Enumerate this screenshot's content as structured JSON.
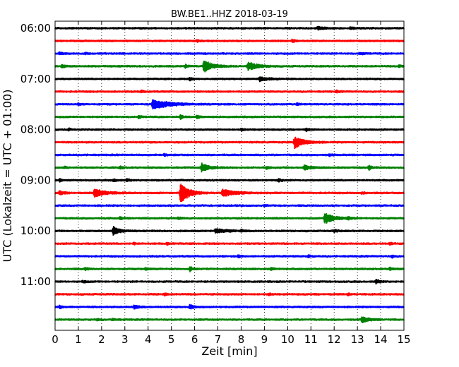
{
  "chart_data": {
    "type": "line",
    "title": "BW.BE1..HHZ 2018-03-19",
    "xlabel": "Zeit  [min]",
    "ylabel": "UTC (Lokalzeit = UTC + 01:00)",
    "xlim": [
      0,
      15
    ],
    "xticks": [
      0,
      1,
      2,
      3,
      4,
      5,
      6,
      7,
      8,
      9,
      10,
      11,
      12,
      13,
      14,
      15
    ],
    "xtick_labels": [
      "0",
      "1",
      "2",
      "3",
      "4",
      "5",
      "6",
      "7",
      "8",
      "9",
      "10",
      "11",
      "12",
      "13",
      "14",
      "15"
    ],
    "grid": "vertical dotted lines at each minute",
    "row_interval_minutes": 15,
    "rows": [
      {
        "time": "06:00",
        "label": "06:00",
        "color": "#000000",
        "events": [
          {
            "t": 11.3,
            "amp": 0.3,
            "dur": 0.5
          },
          {
            "t": 12.7,
            "amp": 0.2,
            "dur": 0.3
          }
        ]
      },
      {
        "time": "06:15",
        "label": "",
        "color": "#ff0000",
        "events": [
          {
            "t": 6.1,
            "amp": 0.25,
            "dur": 0.15
          },
          {
            "t": 10.2,
            "amp": 0.35,
            "dur": 0.2
          }
        ]
      },
      {
        "time": "06:30",
        "label": "",
        "color": "#0000ff",
        "events": [
          {
            "t": 0.2,
            "amp": 0.3,
            "dur": 0.2
          },
          {
            "t": 1.3,
            "amp": 0.2,
            "dur": 0.2
          },
          {
            "t": 13.1,
            "amp": 0.25,
            "dur": 0.3
          }
        ]
      },
      {
        "time": "06:45",
        "label": "",
        "color": "#008000",
        "events": [
          {
            "t": 0.3,
            "amp": 0.3,
            "dur": 0.3
          },
          {
            "t": 5.6,
            "amp": 0.35,
            "dur": 0.2
          },
          {
            "t": 6.4,
            "amp": 1.3,
            "dur": 0.7
          },
          {
            "t": 8.3,
            "amp": 1.0,
            "dur": 0.7
          },
          {
            "t": 14.8,
            "amp": 0.3,
            "dur": 0.2
          }
        ]
      },
      {
        "time": "07:00",
        "label": "07:00",
        "color": "#000000",
        "events": [
          {
            "t": 5.8,
            "amp": 0.3,
            "dur": 0.2
          },
          {
            "t": 8.8,
            "amp": 0.45,
            "dur": 0.7
          }
        ]
      },
      {
        "time": "07:15",
        "label": "",
        "color": "#ff0000",
        "events": [
          {
            "t": 3.7,
            "amp": 0.3,
            "dur": 0.2
          },
          {
            "t": 12.1,
            "amp": 0.2,
            "dur": 0.2
          }
        ]
      },
      {
        "time": "07:30",
        "label": "",
        "color": "#0000ff",
        "events": [
          {
            "t": 1.0,
            "amp": 0.3,
            "dur": 0.15
          },
          {
            "t": 4.2,
            "amp": 1.2,
            "dur": 1.2
          },
          {
            "t": 10.4,
            "amp": 0.3,
            "dur": 0.2
          }
        ]
      },
      {
        "time": "07:45",
        "label": "",
        "color": "#008000",
        "events": [
          {
            "t": 3.6,
            "amp": 0.3,
            "dur": 0.2
          },
          {
            "t": 5.4,
            "amp": 0.45,
            "dur": 0.2
          },
          {
            "t": 6.1,
            "amp": 0.35,
            "dur": 0.2
          }
        ]
      },
      {
        "time": "08:00",
        "label": "08:00",
        "color": "#000000",
        "events": [
          {
            "t": 0.6,
            "amp": 0.25,
            "dur": 0.15
          },
          {
            "t": 10.8,
            "amp": 0.3,
            "dur": 0.2
          },
          {
            "t": 8.0,
            "amp": 0.25,
            "dur": 0.3
          }
        ]
      },
      {
        "time": "08:15",
        "label": "",
        "color": "#ff0000",
        "events": [
          {
            "t": 10.3,
            "amp": 1.4,
            "dur": 0.7
          }
        ]
      },
      {
        "time": "08:30",
        "label": "",
        "color": "#0000ff",
        "events": [
          {
            "t": 4.7,
            "amp": 0.3,
            "dur": 0.2
          },
          {
            "t": 11.8,
            "amp": 0.2,
            "dur": 0.2
          }
        ]
      },
      {
        "time": "08:45",
        "label": "",
        "color": "#008000",
        "events": [
          {
            "t": 0.4,
            "amp": 0.2,
            "dur": 0.2
          },
          {
            "t": 2.8,
            "amp": 0.3,
            "dur": 0.2
          },
          {
            "t": 6.3,
            "amp": 1.0,
            "dur": 0.6
          },
          {
            "t": 9.1,
            "amp": 0.3,
            "dur": 0.2
          },
          {
            "t": 10.7,
            "amp": 0.5,
            "dur": 0.6
          },
          {
            "t": 13.5,
            "amp": 0.45,
            "dur": 0.2
          }
        ]
      },
      {
        "time": "09:00",
        "label": "09:00",
        "color": "#000000",
        "events": [
          {
            "t": 0.2,
            "amp": 0.3,
            "dur": 0.15
          },
          {
            "t": 2.5,
            "amp": 0.3,
            "dur": 0.3
          },
          {
            "t": 3.1,
            "amp": 0.35,
            "dur": 0.2
          },
          {
            "t": 9.6,
            "amp": 0.4,
            "dur": 0.2
          }
        ]
      },
      {
        "time": "09:15",
        "label": "",
        "color": "#ff0000",
        "events": [
          {
            "t": 0.2,
            "amp": 0.45,
            "dur": 0.3
          },
          {
            "t": 1.7,
            "amp": 1.0,
            "dur": 0.8
          },
          {
            "t": 5.4,
            "amp": 2.6,
            "dur": 0.6
          },
          {
            "t": 7.2,
            "amp": 0.9,
            "dur": 0.9
          },
          {
            "t": 13.2,
            "amp": 0.2,
            "dur": 0.2
          }
        ]
      },
      {
        "time": "09:30",
        "label": "",
        "color": "#0000ff",
        "events": [
          {
            "t": 9.0,
            "amp": 0.2,
            "dur": 0.2
          }
        ]
      },
      {
        "time": "09:45",
        "label": "",
        "color": "#008000",
        "events": [
          {
            "t": 2.8,
            "amp": 0.3,
            "dur": 0.2
          },
          {
            "t": 5.3,
            "amp": 0.3,
            "dur": 0.2
          },
          {
            "t": 11.6,
            "amp": 1.3,
            "dur": 0.7
          },
          {
            "t": 12.6,
            "amp": 0.35,
            "dur": 0.2
          }
        ]
      },
      {
        "time": "10:00",
        "label": "10:00",
        "color": "#000000",
        "events": [
          {
            "t": 2.5,
            "amp": 0.9,
            "dur": 0.5
          },
          {
            "t": 6.9,
            "amp": 0.45,
            "dur": 0.9
          },
          {
            "t": 8.0,
            "amp": 0.3,
            "dur": 0.2
          },
          {
            "t": 12.0,
            "amp": 0.25,
            "dur": 0.3
          }
        ]
      },
      {
        "time": "10:15",
        "label": "",
        "color": "#ff0000",
        "events": [
          {
            "t": 3.4,
            "amp": 0.25,
            "dur": 0.15
          },
          {
            "t": 4.8,
            "amp": 0.3,
            "dur": 0.15
          },
          {
            "t": 14.4,
            "amp": 0.25,
            "dur": 0.15
          }
        ]
      },
      {
        "time": "10:30",
        "label": "",
        "color": "#0000ff",
        "events": [
          {
            "t": 7.9,
            "amp": 0.3,
            "dur": 0.15
          },
          {
            "t": 10.9,
            "amp": 0.3,
            "dur": 0.15
          },
          {
            "t": 14.5,
            "amp": 0.3,
            "dur": 0.15
          }
        ]
      },
      {
        "time": "10:45",
        "label": "",
        "color": "#008000",
        "events": [
          {
            "t": 1.3,
            "amp": 0.3,
            "dur": 0.2
          },
          {
            "t": 3.9,
            "amp": 0.3,
            "dur": 0.2
          },
          {
            "t": 5.8,
            "amp": 0.5,
            "dur": 0.2
          },
          {
            "t": 9.3,
            "amp": 0.3,
            "dur": 0.2
          },
          {
            "t": 14.4,
            "amp": 0.35,
            "dur": 0.2
          }
        ]
      },
      {
        "time": "11:00",
        "label": "11:00",
        "color": "#000000",
        "events": [
          {
            "t": 1.2,
            "amp": 0.2,
            "dur": 0.3
          },
          {
            "t": 13.8,
            "amp": 0.5,
            "dur": 0.3
          }
        ]
      },
      {
        "time": "11:15",
        "label": "",
        "color": "#ff0000",
        "events": [
          {
            "t": 4.7,
            "amp": 0.3,
            "dur": 0.2
          },
          {
            "t": 9.2,
            "amp": 0.3,
            "dur": 0.2
          },
          {
            "t": 12.6,
            "amp": 0.25,
            "dur": 0.2
          }
        ]
      },
      {
        "time": "11:30",
        "label": "",
        "color": "#0000ff",
        "events": [
          {
            "t": 0.2,
            "amp": 0.3,
            "dur": 0.2
          },
          {
            "t": 3.4,
            "amp": 0.45,
            "dur": 0.3
          },
          {
            "t": 5.8,
            "amp": 0.55,
            "dur": 0.3
          }
        ]
      },
      {
        "time": "11:45",
        "label": "",
        "color": "#008000",
        "events": [
          {
            "t": 1.8,
            "amp": 0.2,
            "dur": 0.2
          },
          {
            "t": 2.5,
            "amp": 0.25,
            "dur": 0.2
          },
          {
            "t": 13.2,
            "amp": 0.7,
            "dur": 0.5
          }
        ]
      }
    ]
  }
}
